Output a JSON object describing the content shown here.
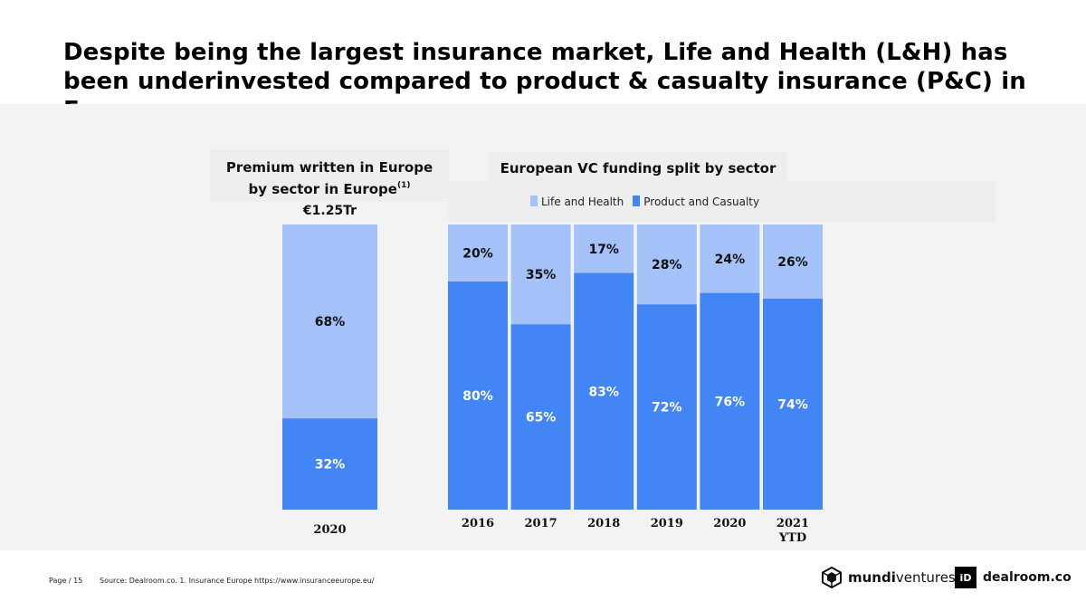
{
  "headline": "Despite being the largest insurance market, Life and Health (L&H) has been underinvested compared to product & casualty insurance (P&C) in Europe.",
  "colors": {
    "life_health": "#a4c2f8",
    "product_casualty": "#4285f4",
    "band": "#f3f3f3"
  },
  "left_chart": {
    "title_line1": "Premium written in Europe",
    "title_line2": "by sector in Europe",
    "footnote_marker": "(1)",
    "total_label": "€1.25Tr"
  },
  "right_chart": {
    "title": "European VC funding split by sector"
  },
  "legend": [
    {
      "label": "Life and Health",
      "color": "#a4c2f8"
    },
    {
      "label": "Product and Casualty",
      "color": "#4285f4"
    }
  ],
  "chart_data": [
    {
      "type": "bar",
      "stacked": true,
      "title": "Premium written in Europe by sector in Europe",
      "categories": [
        "2020"
      ],
      "series": [
        {
          "name": "Product and Casualty",
          "values": [
            32
          ]
        },
        {
          "name": "Life and Health",
          "values": [
            68
          ]
        }
      ],
      "value_labels": {
        "Product and Casualty": [
          "32%"
        ],
        "Life and Health": [
          "68%"
        ]
      },
      "ylim": [
        0,
        100
      ]
    },
    {
      "type": "bar",
      "stacked": true,
      "title": "European VC funding split by sector",
      "categories": [
        "2016",
        "2017",
        "2018",
        "2019",
        "2020",
        "2021 YTD"
      ],
      "category_lines": [
        [
          "2016"
        ],
        [
          "2017"
        ],
        [
          "2018"
        ],
        [
          "2019"
        ],
        [
          "2020"
        ],
        [
          "2021",
          "YTD"
        ]
      ],
      "series": [
        {
          "name": "Product and Casualty",
          "values": [
            80,
            65,
            83,
            72,
            76,
            74
          ]
        },
        {
          "name": "Life and Health",
          "values": [
            20,
            35,
            17,
            28,
            24,
            26
          ]
        }
      ],
      "value_labels": {
        "Product and Casualty": [
          "80%",
          "65%",
          "83%",
          "72%",
          "76%",
          "74%"
        ],
        "Life and Health": [
          "20%",
          "35%",
          "17%",
          "28%",
          "24%",
          "26%"
        ]
      },
      "ylim": [
        0,
        100
      ]
    }
  ],
  "footer": {
    "page": "Page / 15",
    "source": "Source: Dealroom.co.  1. Insurance Europe https://www.insuranceeurope.eu/"
  },
  "logos": {
    "mundi_bold": "mundi",
    "mundi_light": "ventures",
    "dealroom_mark": "iD",
    "dealroom_text": "dealroom.co"
  }
}
